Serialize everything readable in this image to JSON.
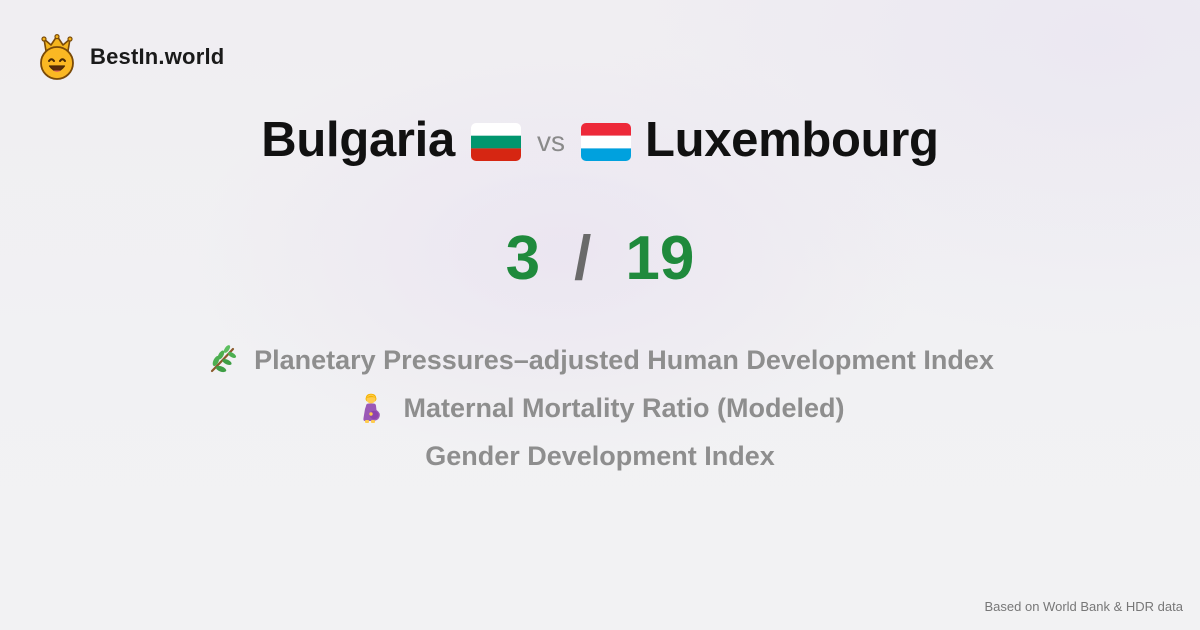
{
  "brand": {
    "name": "BestIn.world",
    "logo_icon": "crowned-smiley-icon"
  },
  "comparison": {
    "left": {
      "name": "Bulgaria",
      "flag_icon": "bulgaria-flag-icon"
    },
    "vs_label": "vs",
    "right": {
      "name": "Luxembourg",
      "flag_icon": "luxembourg-flag-icon"
    }
  },
  "score": {
    "left": "3",
    "separator": "/",
    "right": "19",
    "color": "#1f8a3c"
  },
  "metrics": [
    {
      "label": "Planetary Pressures–adjusted Human Development Index",
      "icon": "herb-icon"
    },
    {
      "label": "Maternal Mortality Ratio (Modeled)",
      "icon": "pregnant-woman-icon"
    },
    {
      "label": "Gender Development Index",
      "icon": ""
    }
  ],
  "footer": {
    "attribution": "Based on World Bank & HDR data"
  },
  "colors": {
    "text_primary": "#111111",
    "text_muted": "#8e8e8e",
    "score_green": "#1f8a3c",
    "bulgaria_flag": [
      "#ffffff",
      "#00966e",
      "#d62612"
    ],
    "luxembourg_flag": [
      "#ed2939",
      "#ffffff",
      "#00a1de"
    ]
  }
}
